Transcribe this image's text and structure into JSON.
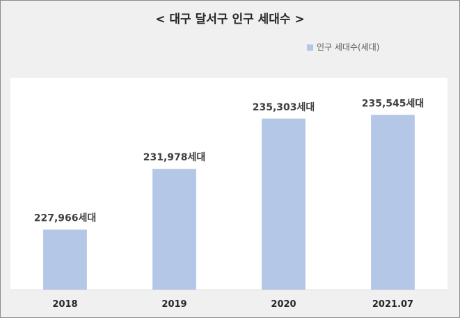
{
  "colors": {
    "bar": "#b4c7e7",
    "background": "#f0f0f0",
    "plot_background": "#ffffff",
    "axis_line": "#d9d9d9",
    "frame": "#8c8c8c"
  },
  "chart_data": {
    "type": "bar",
    "title": "< 대구 달서구 인구 세대수 >",
    "categories": [
      "2018",
      "2019",
      "2020",
      "2021.07"
    ],
    "series": [
      {
        "name": "인구 세대수(세대)",
        "values": [
          227966,
          231978,
          235303,
          235545
        ]
      }
    ],
    "data_labels": [
      "227,966세대",
      "231,978세대",
      "235,303세대",
      "235,545세대"
    ],
    "xlabel": "",
    "ylabel": "",
    "ylim": [
      224000,
      238000
    ],
    "grid": false,
    "legend_position": "top-right"
  }
}
